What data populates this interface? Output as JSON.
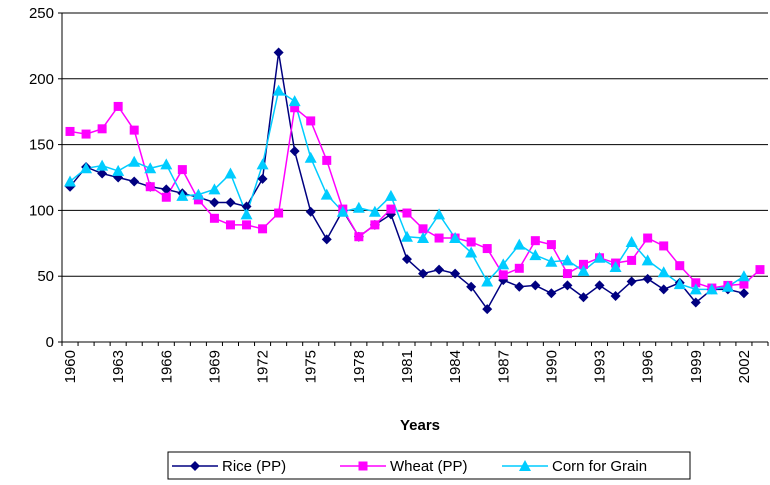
{
  "chart_data": {
    "type": "line",
    "x_label": "Years",
    "categories": [
      "1960",
      null,
      null,
      "1963",
      null,
      null,
      "1966",
      null,
      null,
      "1969",
      null,
      null,
      "1972",
      null,
      null,
      "1975",
      null,
      null,
      "1978",
      null,
      null,
      "1981",
      null,
      null,
      "1984",
      null,
      null,
      "1987",
      null,
      null,
      "1990",
      null,
      null,
      "1993",
      null,
      null,
      "1996",
      null,
      null,
      "1999",
      null,
      null,
      "2002",
      null
    ],
    "series": [
      {
        "name": "Rice (PP)",
        "color": "#000080",
        "marker": "diamond",
        "values": [
          118,
          133,
          128,
          125,
          122,
          118,
          116,
          113,
          110,
          106,
          106,
          103,
          124,
          220,
          145,
          99,
          78,
          100,
          80,
          89,
          97,
          63,
          52,
          55,
          52,
          42,
          25,
          47,
          42,
          43,
          37,
          43,
          34,
          43,
          35,
          46,
          48,
          40,
          45,
          30,
          40,
          40,
          37,
          null
        ]
      },
      {
        "name": "Wheat (PP)",
        "color": "#ff00ff",
        "marker": "square",
        "values": [
          160,
          158,
          162,
          179,
          161,
          118,
          110,
          131,
          108,
          94,
          89,
          89,
          86,
          98,
          178,
          168,
          138,
          101,
          80,
          89,
          101,
          98,
          86,
          79,
          79,
          76,
          71,
          51,
          56,
          77,
          74,
          52,
          59,
          64,
          60,
          62,
          79,
          73,
          58,
          45,
          41,
          43,
          44,
          55
        ]
      },
      {
        "name": "Corn for Grain",
        "color": "#00ccff",
        "marker": "triangle",
        "values": [
          122,
          132,
          134,
          130,
          137,
          132,
          135,
          111,
          112,
          116,
          128,
          97,
          135,
          191,
          183,
          140,
          112,
          99,
          102,
          99,
          111,
          80,
          79,
          97,
          79,
          68,
          46,
          59,
          74,
          66,
          61,
          62,
          54,
          64,
          57,
          76,
          62,
          53,
          44,
          40,
          40,
          42,
          50,
          null
        ]
      }
    ],
    "ylim": [
      0,
      250
    ],
    "yticks": [
      0,
      50,
      100,
      150,
      200,
      250
    ],
    "grid": true
  }
}
